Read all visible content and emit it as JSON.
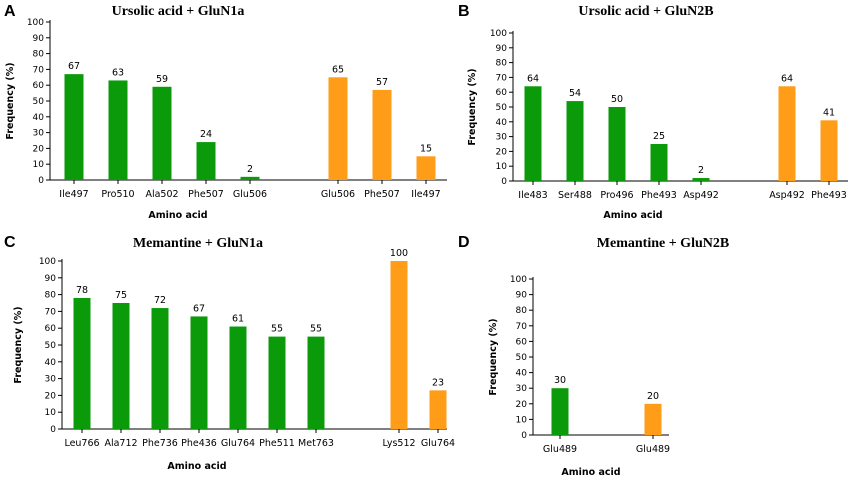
{
  "colors": {
    "green": "#0a9a0a",
    "orange": "#ff9d19"
  },
  "chart_data": [
    {
      "panel": "A",
      "type": "bar",
      "title": "Ursolic acid + GluN1a",
      "xlabel": "Amino acid",
      "ylabel": "Frequency (%)",
      "ylim": [
        0,
        100
      ],
      "yticks": [
        "0",
        "10",
        "20",
        "30",
        "40",
        "50",
        "60",
        "70",
        "80",
        "90",
        "100"
      ],
      "categories": [
        "Ile497",
        "Pro510",
        "Ala502",
        "Phe507",
        "Glu506",
        "Glu506",
        "Phe507",
        "Ile497"
      ],
      "values": [
        67,
        63,
        59,
        24,
        2,
        65,
        57,
        15
      ],
      "groups": [
        "green",
        "green",
        "green",
        "green",
        "green",
        "orange",
        "orange",
        "orange"
      ]
    },
    {
      "panel": "B",
      "type": "bar",
      "title": "Ursolic acid + GluN2B",
      "xlabel": "Amino acid",
      "ylabel": "Frequency (%)",
      "ylim": [
        0,
        100
      ],
      "yticks": [
        "0",
        "10",
        "20",
        "30",
        "40",
        "50",
        "60",
        "70",
        "80",
        "90",
        "100"
      ],
      "categories": [
        "Ile483",
        "Ser488",
        "Pro496",
        "Phe493",
        "Asp492",
        "Asp492",
        "Phe493"
      ],
      "values": [
        64,
        54,
        50,
        25,
        2,
        64,
        41
      ],
      "groups": [
        "green",
        "green",
        "green",
        "green",
        "green",
        "orange",
        "orange"
      ]
    },
    {
      "panel": "C",
      "type": "bar",
      "title": "Memantine + GluN1a",
      "xlabel": "Amino acid",
      "ylabel": "Frequency (%)",
      "ylim": [
        0,
        100
      ],
      "yticks": [
        "0",
        "10",
        "20",
        "30",
        "40",
        "50",
        "60",
        "70",
        "80",
        "90",
        "100"
      ],
      "categories": [
        "Leu766",
        "Ala712",
        "Phe736",
        "Phe436",
        "Glu764",
        "Phe511",
        "Met763",
        "Lys512",
        "Glu764"
      ],
      "values": [
        78,
        75,
        72,
        67,
        61,
        55,
        55,
        100,
        23
      ],
      "groups": [
        "green",
        "green",
        "green",
        "green",
        "green",
        "green",
        "green",
        "orange",
        "orange"
      ]
    },
    {
      "panel": "D",
      "type": "bar",
      "title": "Memantine + GluN2B",
      "xlabel": "Amino acid",
      "ylabel": "Frequency (%)",
      "ylim": [
        0,
        100
      ],
      "yticks": [
        "0",
        "10",
        "20",
        "30",
        "40",
        "50",
        "60",
        "70",
        "80",
        "90",
        "100"
      ],
      "categories": [
        "Glu489",
        "Glu489"
      ],
      "values": [
        30,
        20
      ],
      "groups": [
        "green",
        "orange"
      ]
    }
  ]
}
